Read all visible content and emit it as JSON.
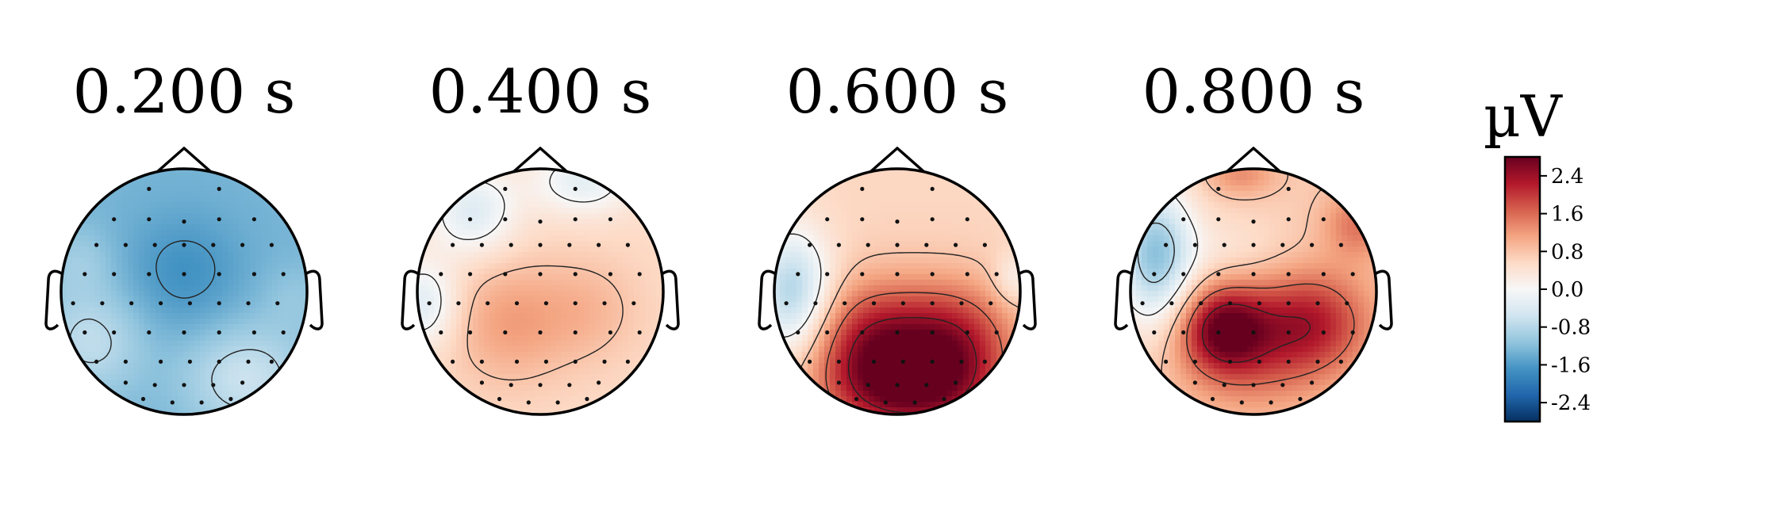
{
  "chart_data": {
    "type": "heatmap",
    "subtype": "eeg-topomap",
    "panels": [
      {
        "title": "0.200 s",
        "baseline": -1.3,
        "blobs": [
          {
            "cx": 0.0,
            "cy": 0.15,
            "sx": 0.35,
            "sy": 0.35,
            "a": -0.4
          },
          {
            "cx": -0.75,
            "cy": -0.4,
            "sx": 0.3,
            "sy": 0.3,
            "a": 0.6
          },
          {
            "cx": 0.5,
            "cy": -0.7,
            "sx": 0.35,
            "sy": 0.3,
            "a": 0.7
          },
          {
            "cx": -0.85,
            "cy": 0.25,
            "sx": 0.2,
            "sy": 0.2,
            "a": 0.3
          },
          {
            "cx": 0.9,
            "cy": -0.05,
            "sx": 0.2,
            "sy": 0.2,
            "a": 0.2
          }
        ]
      },
      {
        "title": "0.400 s",
        "baseline": 0.55,
        "blobs": [
          {
            "cx": -0.25,
            "cy": -0.25,
            "sx": 0.35,
            "sy": 0.35,
            "a": 0.6
          },
          {
            "cx": 0.4,
            "cy": -0.15,
            "sx": 0.3,
            "sy": 0.3,
            "a": 0.35
          },
          {
            "cx": -0.55,
            "cy": 0.65,
            "sx": 0.25,
            "sy": 0.25,
            "a": -0.9
          },
          {
            "cx": 0.35,
            "cy": 0.9,
            "sx": 0.3,
            "sy": 0.2,
            "a": -0.8
          },
          {
            "cx": -0.95,
            "cy": -0.1,
            "sx": 0.2,
            "sy": 0.25,
            "a": -0.9
          }
        ]
      },
      {
        "title": "0.600 s",
        "baseline": 0.6,
        "blobs": [
          {
            "cx": -0.2,
            "cy": -0.45,
            "sx": 0.35,
            "sy": 0.35,
            "a": 1.7
          },
          {
            "cx": 0.45,
            "cy": -0.45,
            "sx": 0.35,
            "sy": 0.35,
            "a": 1.7
          },
          {
            "cx": 0.1,
            "cy": -0.85,
            "sx": 0.45,
            "sy": 0.25,
            "a": 1.3
          },
          {
            "cx": -0.85,
            "cy": 0.0,
            "sx": 0.22,
            "sy": 0.35,
            "a": -1.5
          },
          {
            "cx": 0.95,
            "cy": 0.1,
            "sx": 0.12,
            "sy": 0.15,
            "a": -0.5
          }
        ]
      },
      {
        "title": "0.800 s",
        "baseline": 0.7,
        "blobs": [
          {
            "cx": -0.25,
            "cy": -0.3,
            "sx": 0.25,
            "sy": 0.25,
            "a": 1.9
          },
          {
            "cx": 0.45,
            "cy": -0.25,
            "sx": 0.35,
            "sy": 0.3,
            "a": 1.5
          },
          {
            "cx": 0.0,
            "cy": -0.6,
            "sx": 0.4,
            "sy": 0.3,
            "a": 0.6
          },
          {
            "cx": -0.8,
            "cy": 0.3,
            "sx": 0.22,
            "sy": 0.4,
            "a": -1.8
          },
          {
            "cx": -0.2,
            "cy": 0.35,
            "sx": 0.35,
            "sy": 0.2,
            "a": -0.3
          },
          {
            "cx": 0.85,
            "cy": 0.55,
            "sx": 0.2,
            "sy": 0.2,
            "a": 0.8
          },
          {
            "cx": -0.1,
            "cy": 0.95,
            "sx": 0.2,
            "sy": 0.12,
            "a": 0.6
          }
        ]
      }
    ],
    "sensors": [
      [
        -0.3,
        0.88
      ],
      [
        0.3,
        0.88
      ],
      [
        -0.6,
        0.62
      ],
      [
        -0.3,
        0.62
      ],
      [
        0.0,
        0.6
      ],
      [
        0.3,
        0.62
      ],
      [
        0.6,
        0.62
      ],
      [
        -0.75,
        0.4
      ],
      [
        -0.5,
        0.4
      ],
      [
        -0.25,
        0.4
      ],
      [
        0.0,
        0.4
      ],
      [
        0.25,
        0.4
      ],
      [
        0.5,
        0.4
      ],
      [
        0.75,
        0.4
      ],
      [
        -0.85,
        0.15
      ],
      [
        -0.6,
        0.15
      ],
      [
        -0.3,
        0.15
      ],
      [
        0.0,
        0.15
      ],
      [
        0.3,
        0.15
      ],
      [
        0.6,
        0.15
      ],
      [
        0.85,
        0.15
      ],
      [
        -0.95,
        -0.1
      ],
      [
        -0.7,
        -0.1
      ],
      [
        -0.45,
        -0.1
      ],
      [
        -0.2,
        -0.1
      ],
      [
        0.05,
        -0.1
      ],
      [
        0.3,
        -0.1
      ],
      [
        0.55,
        -0.1
      ],
      [
        0.8,
        -0.1
      ],
      [
        -0.85,
        -0.35
      ],
      [
        -0.6,
        -0.35
      ],
      [
        -0.3,
        -0.35
      ],
      [
        0.0,
        -0.35
      ],
      [
        0.3,
        -0.35
      ],
      [
        0.6,
        -0.35
      ],
      [
        0.85,
        -0.35
      ],
      [
        -0.75,
        -0.6
      ],
      [
        -0.5,
        -0.6
      ],
      [
        -0.2,
        -0.6
      ],
      [
        0.05,
        -0.6
      ],
      [
        0.3,
        -0.6
      ],
      [
        0.55,
        -0.6
      ],
      [
        0.75,
        -0.6
      ],
      [
        -0.5,
        -0.78
      ],
      [
        -0.25,
        -0.8
      ],
      [
        0.0,
        -0.8
      ],
      [
        0.25,
        -0.8
      ],
      [
        0.5,
        -0.78
      ],
      [
        -0.35,
        -0.92
      ],
      [
        -0.1,
        -0.95
      ],
      [
        0.15,
        -0.95
      ],
      [
        0.4,
        -0.92
      ]
    ],
    "contour_levels": [
      -2.4,
      -1.6,
      -0.8,
      0.0,
      0.8,
      1.6,
      2.4
    ],
    "colorbar": {
      "label": "µV",
      "range": [
        -2.8,
        2.8
      ],
      "ticks": [
        "2.4",
        "1.6",
        "0.8",
        "0.0",
        "-0.8",
        "-1.6",
        "-2.4"
      ],
      "tick_values": [
        2.4,
        1.6,
        0.8,
        0.0,
        -0.8,
        -1.6,
        -2.4
      ],
      "colormap": "RdBu_r",
      "colors": [
        "#053061",
        "#2166ac",
        "#4393c3",
        "#92c5de",
        "#d1e5f0",
        "#f7f7f7",
        "#fddbc7",
        "#f4a582",
        "#d6604d",
        "#b2182b",
        "#67001f"
      ]
    }
  }
}
